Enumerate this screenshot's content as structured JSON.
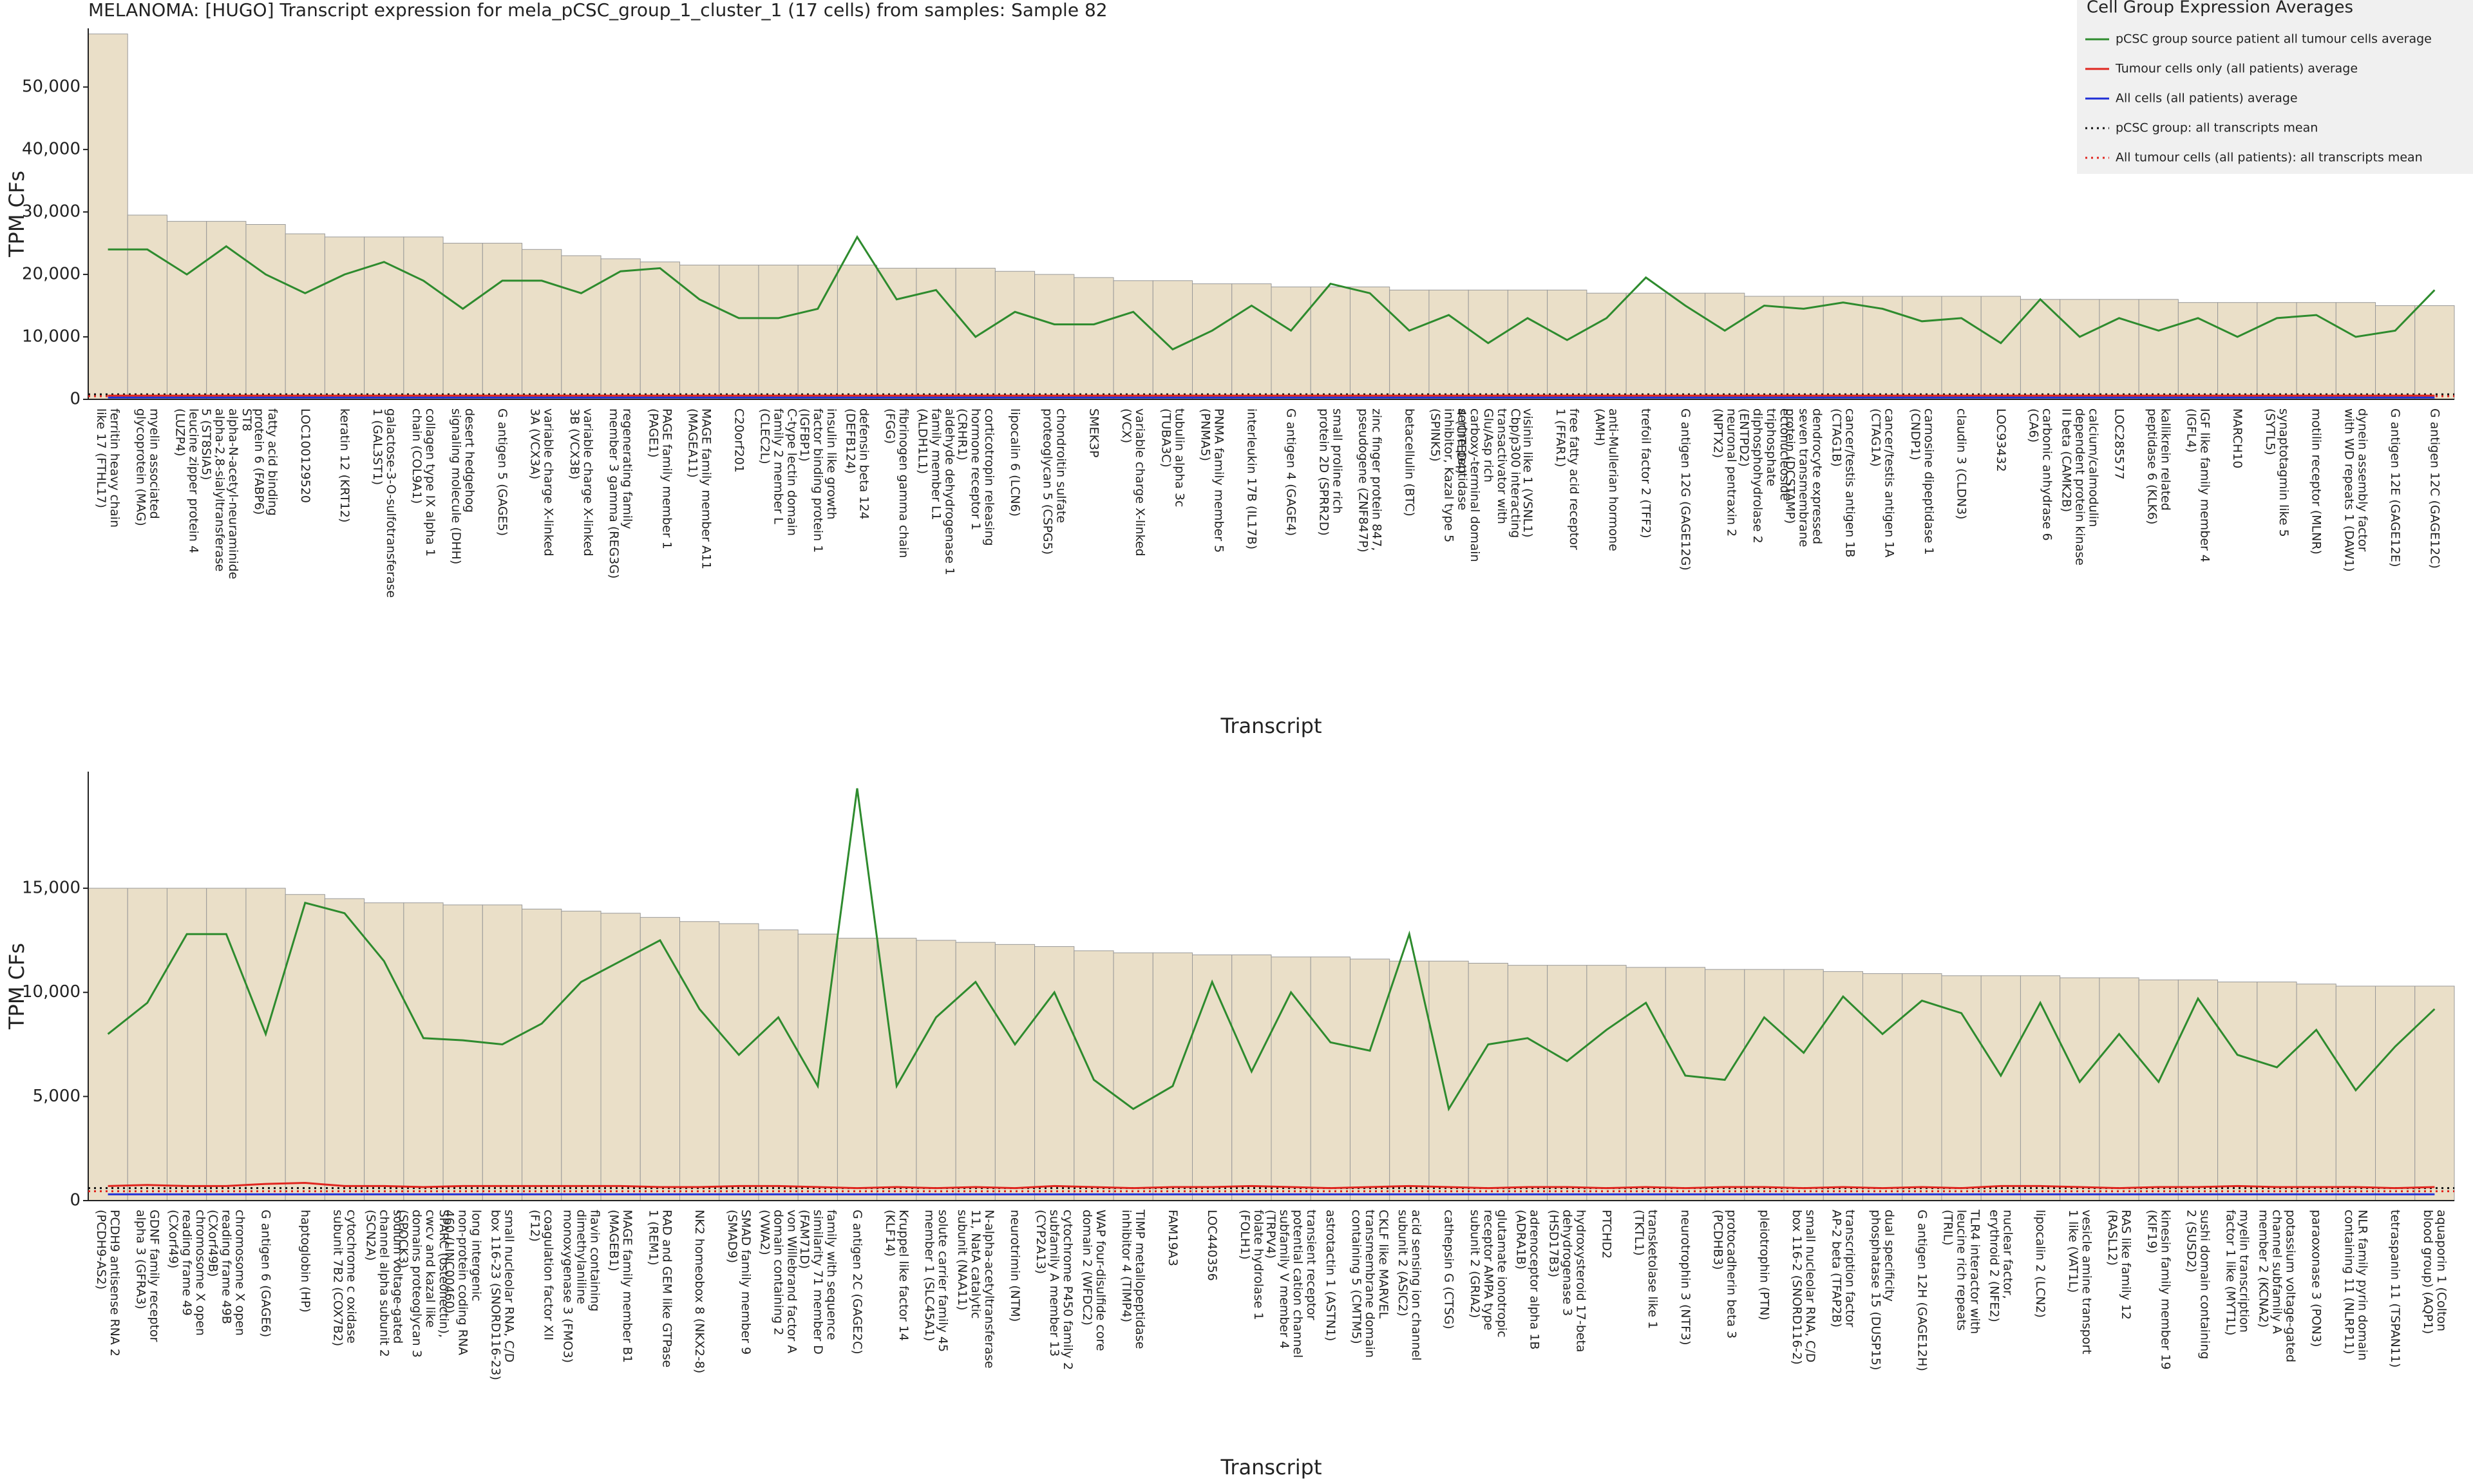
{
  "chart_data": [
    {
      "type": "bar",
      "title": "MELANOMA: [HUGO] Transcript expression for mela_pCSC_group_1_cluster_1 (17 cells) from samples: Sample 82",
      "xlabel": "Transcript",
      "ylabel": "TPM CFs",
      "legend_title": "Cell Group Expression Averages",
      "bar_color": "#eadfc8",
      "categories": [
        "ferritin heavy chain like 17 (FTHL17)",
        "myelin associated glycoprotein (MAG)",
        "leucine zipper protein 4 (LUZP4)",
        "ST8 alpha-N-acetyl-neuraminide alpha-2,8-sialyltransferase 5 (ST8SIA5)",
        "fatty acid binding protein 6 (FABP6)",
        "LOC100129520",
        "keratin 12 (KRT12)",
        "galactose-3-O-sulfotransferase 1 (GAL3ST1)",
        "collagen type IX alpha 1 chain (COL9A1)",
        "desert hedgehog signaling molecule (DHH)",
        "G antigen 5 (GAGE5)",
        "variable charge X-linked 3A (VCX3A)",
        "variable charge X-linked 3B (VCX3B)",
        "regenerating family member 3 gamma (REG3G)",
        "PAGE family member 1 (PAGE1)",
        "MAGE family member A11 (MAGEA11)",
        "C20orf201",
        "C-type lectin domain family 2 member L (CLEC2L)",
        "insulin like growth factor binding protein 1 (IGFBP1)",
        "defensin beta 124 (DEFB124)",
        "fibrinogen gamma chain (FGG)",
        "aldehyde dehydrogenase 1 family member L1 (ALDH1L1)",
        "corticotropin releasing hormone receptor 1 (CRHR1)",
        "lipocalin 6 (LCN6)",
        "chondroitin sulfate proteoglycan 5 (CSPG5)",
        "SMEK3P",
        "variable charge X-linked (VCX)",
        "tubulin alpha 3c (TUBA3C)",
        "PNMA family member 5 (PNMA5)",
        "interleukin 17B (IL17B)",
        "G antigen 4 (GAGE4)",
        "small proline rich protein 2D (SPRR2D)",
        "zinc finger protein 847, pseudogene (ZNF847P)",
        "betacellulin (BTC)",
        "serine peptidase inhibitor, Kazal type 5 (SPINK5)",
        "Cbp/p300 interacting transactivator with Glu/Asp rich carboxy-terminal domain 4 (CITED4)",
        "visinin like 1 (VSNL1)",
        "free fatty acid receptor 1 (FFAR1)",
        "anti-Mullerian hormone (AMH)",
        "trefoil factor 2 (TFF2)",
        "G antigen 12G (GAGE12G)",
        "neuronal pentraxin 2 (NPTX2)",
        "ectonucleoside triphosphate diphosphohydrolase 2 (ENTPD2)",
        "dendrocyte expressed seven transmembrane protein (DCSTAMP)",
        "cancer/testis antigen 1B (CTAG1B)",
        "cancer/testis antigen 1A (CTAG1A)",
        "carnosine dipeptidase 1 (CNDP1)",
        "claudin 3 (CLDN3)",
        "LOC93432",
        "carbonic anhydrase 6 (CA6)",
        "calcium/calmodulin dependent protein kinase II beta (CAMK2B)",
        "LOC285577",
        "kallikrein related peptidase 6 (KLK6)",
        "IGF like family member 4 (IGFL4)",
        "MARCH10",
        "synaptotagmin like 5 (SYTL5)",
        "motilin receptor (MLNR)",
        "dynein assembly factor with WD repeats 1 (DAW1)",
        "G antigen 12E (GAGE12E)",
        "G antigen 12C (GAGE12C)"
      ],
      "values": [
        58500,
        29500,
        28500,
        28500,
        28000,
        26500,
        26000,
        26000,
        26000,
        25000,
        25000,
        24000,
        23000,
        22500,
        22000,
        21500,
        21500,
        21500,
        21500,
        21500,
        21000,
        21000,
        21000,
        20500,
        20000,
        19500,
        19000,
        19000,
        18500,
        18500,
        18000,
        18000,
        18000,
        17500,
        17500,
        17500,
        17500,
        17500,
        17000,
        17000,
        17000,
        17000,
        16500,
        16500,
        16500,
        16500,
        16500,
        16500,
        16500,
        16000,
        16000,
        16000,
        16000,
        15500,
        15500,
        15500,
        15500,
        15500,
        15000,
        15000
      ],
      "series": [
        {
          "name": "pCSC group source patient all tumour cells average",
          "color": "#2e8b2e",
          "values": [
            24000,
            24000,
            20000,
            24500,
            20000,
            17000,
            20000,
            22000,
            19000,
            14500,
            19000,
            19000,
            17000,
            20500,
            21000,
            16000,
            13000,
            13000,
            14500,
            26000,
            16000,
            17500,
            10000,
            14000,
            12000,
            12000,
            14000,
            8000,
            11000,
            15000,
            11000,
            18500,
            17000,
            11000,
            13500,
            9000,
            13000,
            9500,
            13000,
            19500,
            15000,
            11000,
            15000,
            14500,
            15500,
            14500,
            12500,
            13000,
            9000,
            16000,
            10000,
            13000,
            11000,
            13000,
            10000,
            13000,
            13500,
            10000,
            11000,
            17500
          ]
        },
        {
          "name": "Tumour cells only (all patients) average",
          "color": "#e0261f",
          "values": [
            600,
            600,
            600,
            600,
            600,
            600,
            600,
            600,
            600,
            600,
            600,
            600,
            600,
            600,
            600,
            600,
            600,
            600,
            600,
            600,
            600,
            600,
            600,
            600,
            600,
            600,
            600,
            600,
            600,
            600,
            600,
            600,
            600,
            600,
            600,
            600,
            600,
            600,
            600,
            600,
            600,
            600,
            600,
            600,
            600,
            600,
            600,
            600,
            600,
            600,
            600,
            600,
            600,
            600,
            600,
            600,
            600,
            600,
            600,
            600
          ]
        },
        {
          "name": "All cells (all patients) average",
          "color": "#1f2fd6",
          "values": [
            300,
            300,
            300,
            300,
            300,
            300,
            300,
            300,
            300,
            300,
            300,
            300,
            300,
            300,
            300,
            300,
            300,
            300,
            300,
            300,
            300,
            300,
            300,
            300,
            300,
            300,
            300,
            300,
            300,
            300,
            300,
            300,
            300,
            300,
            300,
            300,
            300,
            300,
            300,
            300,
            300,
            300,
            300,
            300,
            300,
            300,
            300,
            300,
            300,
            300,
            300,
            300,
            300,
            300,
            300,
            300,
            300,
            300,
            300,
            300
          ]
        }
      ],
      "means": [
        {
          "name": "pCSC group: all transcripts mean",
          "color": "#111111",
          "linestyle": "dotted",
          "value": 800
        },
        {
          "name": "All tumour cells (all patients): all transcripts mean",
          "color": "#e0261f",
          "linestyle": "dotted",
          "value": 500
        }
      ],
      "ylim": [
        0,
        59400
      ],
      "yticks": [
        0,
        {
          "value": 10000,
          "label": "10,000"
        },
        {
          "value": 20000,
          "label": "20,000"
        },
        {
          "value": 30000,
          "label": "30,000"
        },
        {
          "value": 40000,
          "label": "40,000"
        },
        {
          "value": 50000,
          "label": "50,000"
        }
      ]
    },
    {
      "type": "bar",
      "xlabel": "Transcript",
      "ylabel": "TPM CFs",
      "bar_color": "#eadfc8",
      "categories": [
        "PCDH9 antisense RNA 2 (PCDH9-AS2)",
        "GDNF family receptor alpha 3 (GFRA3)",
        "chromosome X open reading frame 49 (CXorf49)",
        "chromosome X open reading frame 49B (CXorf49B)",
        "G antigen 6 (GAGE6)",
        "haptoglobin (HP)",
        "cytochrome c oxidase subunit 7B2 (COX7B2)",
        "sodium voltage-gated channel alpha subunit 2 (SCN2A)",
        "SPARC (osteonectin), cwcv and kazal like domains proteoglycan 3 (SPOCK3)",
        "long intergenic non-protein coding RNA 460 (LINC00460)",
        "small nucleolar RNA, C/D box 116-23 (SNORD116-23)",
        "coagulation factor XII (F12)",
        "flavin containing dimethylaniline monoxygenase 3 (FMO3)",
        "MAGE family member B1 (MAGEB1)",
        "RAD and GEM like GTPase 1 (REM1)",
        "NK2 homeobox 8 (NKX2-8)",
        "SMAD family member 9 (SMAD9)",
        "von Willebrand factor A domain containing 2 (VWA2)",
        "family with sequence similarity 71 member D (FAM71D)",
        "G antigen 2C (GAGE2C)",
        "Kruppel like factor 14 (KLF14)",
        "solute carrier family 45 member 1 (SLC45A1)",
        "N-alpha-acetyltransferase 11, NatA catalytic subunit (NAA11)",
        "neurotrimin (NTM)",
        "cytochrome P450 family 2 subfamily A member 13 (CYP2A13)",
        "WAP four-disulfide core domain 2 (WFDC2)",
        "TIMP metallopeptidase inhibitor 4 (TIMP4)",
        "FAM19A3",
        "LOC440356",
        "folate hydrolase 1 (FOLH1)",
        "transient receptor potential cation channel subfamily V member 4 (TRPV4)",
        "astrotactin 1 (ASTN1)",
        "CKLF like MARVEL transmembrane domain containing 5 (CMTM5)",
        "acid sensing ion channel subunit 2 (ASIC2)",
        "cathepsin G (CTSG)",
        "glutamate ionotropic receptor AMPA type subunit 2 (GRIA2)",
        "adrenoceptor alpha 1B (ADRA1B)",
        "hydroxysteroid 17-beta dehydrogenase 3 (HSD17B3)",
        "PTCHD2",
        "transketolase like 1 (TKTL1)",
        "neurotrophin 3 (NTF3)",
        "protocadherin beta 3 (PCDHB3)",
        "pleiotrophin (PTN)",
        "small nucleolar RNA, C/D box 116-2 (SNORD116-2)",
        "transcription factor AP-2 beta (TFAP2B)",
        "dual specificity phosphatase 15 (DUSP15)",
        "G antigen 12H (GAGE12H)",
        "TLR4 interactor with leucine rich repeats (TRIL)",
        "nuclear factor, erythroid 2 (NFE2)",
        "lipocalin 2 (LCN2)",
        "vesicle amine transport 1 like (VAT1L)",
        "RAS like family 12 (RASL12)",
        "kinesin family member 19 (KIF19)",
        "sushi domain containing 2 (SUSD2)",
        "myelin transcription factor 1 like (MYT1L)",
        "potassium voltage-gated channel subfamily A member 2 (KCNA2)",
        "paraoxonase 3 (PON3)",
        "NLR family pyrin domain containing 11 (NLRP11)",
        "tetraspanin 11 (TSPAN11)",
        "aquaporin 1 (Colton blood group) (AQP1)"
      ],
      "values": [
        15000,
        15000,
        15000,
        15000,
        15000,
        14700,
        14500,
        14300,
        14300,
        14200,
        14200,
        14000,
        13900,
        13800,
        13600,
        13400,
        13300,
        13000,
        12800,
        12600,
        12600,
        12500,
        12400,
        12300,
        12200,
        12000,
        11900,
        11900,
        11800,
        11800,
        11700,
        11700,
        11600,
        11500,
        11500,
        11400,
        11300,
        11300,
        11300,
        11200,
        11200,
        11100,
        11100,
        11100,
        11000,
        10900,
        10900,
        10800,
        10800,
        10800,
        10700,
        10700,
        10600,
        10600,
        10500,
        10500,
        10400,
        10300,
        10300,
        10300
      ],
      "series": [
        {
          "color": "#2e8b2e",
          "values": [
            8000,
            9500,
            12800,
            12800,
            8000,
            14300,
            13800,
            11500,
            7800,
            7700,
            7500,
            8500,
            10500,
            11500,
            12500,
            9200,
            7000,
            8800,
            5500,
            19800,
            5500,
            8800,
            10500,
            7500,
            10000,
            5800,
            4400,
            5500,
            10500,
            6200,
            10000,
            7600,
            7200,
            12800,
            4400,
            7500,
            7800,
            6700,
            8200,
            9500,
            6000,
            5800,
            8800,
            7100,
            9800,
            8000,
            9600,
            9000,
            6000,
            9500,
            5700,
            8000,
            5700,
            9700,
            7000,
            6400,
            8200,
            5300,
            7400,
            9200
          ]
        },
        {
          "color": "#e0261f",
          "values": [
            700,
            750,
            700,
            700,
            800,
            850,
            700,
            700,
            650,
            700,
            700,
            700,
            700,
            700,
            650,
            650,
            700,
            700,
            650,
            600,
            650,
            600,
            650,
            600,
            700,
            650,
            600,
            650,
            650,
            700,
            650,
            600,
            650,
            700,
            650,
            600,
            650,
            650,
            600,
            650,
            600,
            650,
            650,
            600,
            650,
            600,
            650,
            600,
            700,
            700,
            650,
            600,
            650,
            650,
            700,
            650,
            650,
            650,
            600,
            650
          ]
        },
        {
          "color": "#1f2fd6",
          "values": [
            300,
            300,
            300,
            300,
            300,
            300,
            300,
            300,
            300,
            300,
            300,
            300,
            300,
            300,
            300,
            300,
            300,
            300,
            300,
            300,
            300,
            300,
            300,
            300,
            300,
            300,
            300,
            300,
            300,
            300,
            300,
            300,
            300,
            300,
            300,
            300,
            300,
            300,
            300,
            300,
            300,
            300,
            300,
            300,
            300,
            300,
            300,
            300,
            300,
            300,
            300,
            300,
            300,
            300,
            300,
            300,
            300,
            300,
            300,
            300
          ]
        }
      ],
      "means": [
        {
          "color": "#111111",
          "linestyle": "dotted",
          "value": 600
        },
        {
          "color": "#e0261f",
          "linestyle": "dotted",
          "value": 450
        }
      ],
      "ylim": [
        0,
        20600
      ],
      "yticks": [
        0,
        {
          "value": 5000,
          "label": "5,000"
        },
        {
          "value": 10000,
          "label": "10,000"
        },
        {
          "value": 15000,
          "label": "15,000"
        }
      ]
    }
  ]
}
